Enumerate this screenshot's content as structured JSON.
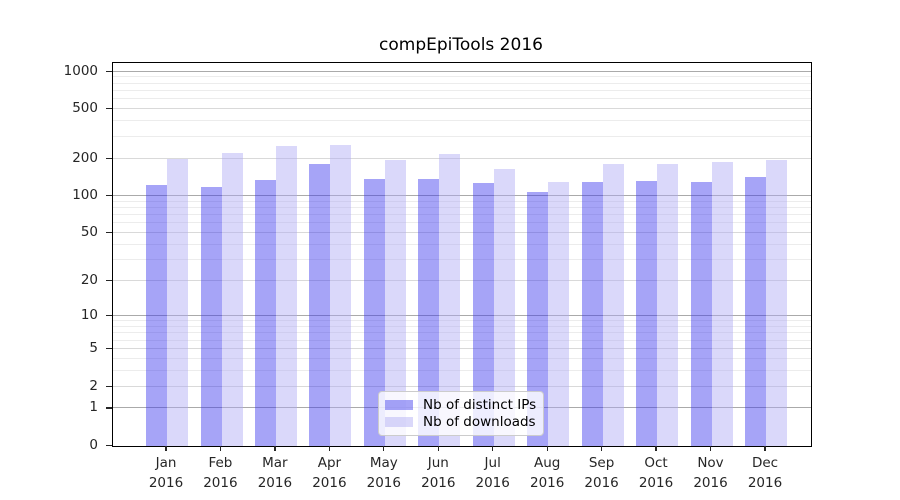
{
  "chart_data": {
    "type": "bar",
    "title": "compEpiTools 2016",
    "categories": [
      "Jan",
      "Feb",
      "Mar",
      "Apr",
      "May",
      "Jun",
      "Jul",
      "Aug",
      "Sep",
      "Oct",
      "Nov",
      "Dec"
    ],
    "year_label": "2016",
    "series": [
      {
        "name": "Nb of distinct IPs",
        "fill": "rgba(57, 53, 237, 0.45)",
        "flat_hex": "#a6a4f7",
        "values": [
          122,
          117,
          134,
          182,
          138,
          136,
          128,
          107,
          130,
          131,
          130,
          142
        ]
      },
      {
        "name": "Nb of downloads",
        "fill": "rgba(173, 168, 244, 0.45)",
        "flat_hex": "#dad8fa",
        "values": [
          200,
          220,
          252,
          257,
          194,
          217,
          166,
          130,
          180,
          180,
          188,
          195
        ]
      }
    ],
    "yscale": "log1p",
    "ylim": [
      0,
      1000
    ],
    "axis": {
      "yticks": [
        0,
        1,
        2,
        5,
        10,
        20,
        50,
        100,
        200,
        500,
        1000
      ],
      "ytick_labels": [
        "0",
        "1",
        "2",
        "5",
        "10",
        "20",
        "50",
        "100",
        "200",
        "500",
        "1000"
      ],
      "major_gridlines": [
        1,
        10,
        100,
        1000
      ],
      "sub_gridlines": [
        2,
        5,
        20,
        50,
        200,
        500
      ],
      "minor_gridlines": [
        3,
        4,
        6,
        7,
        8,
        9,
        30,
        40,
        60,
        70,
        80,
        90,
        300,
        400,
        600,
        700,
        800,
        900
      ]
    },
    "legend_position": "lower center",
    "grid": true
  }
}
